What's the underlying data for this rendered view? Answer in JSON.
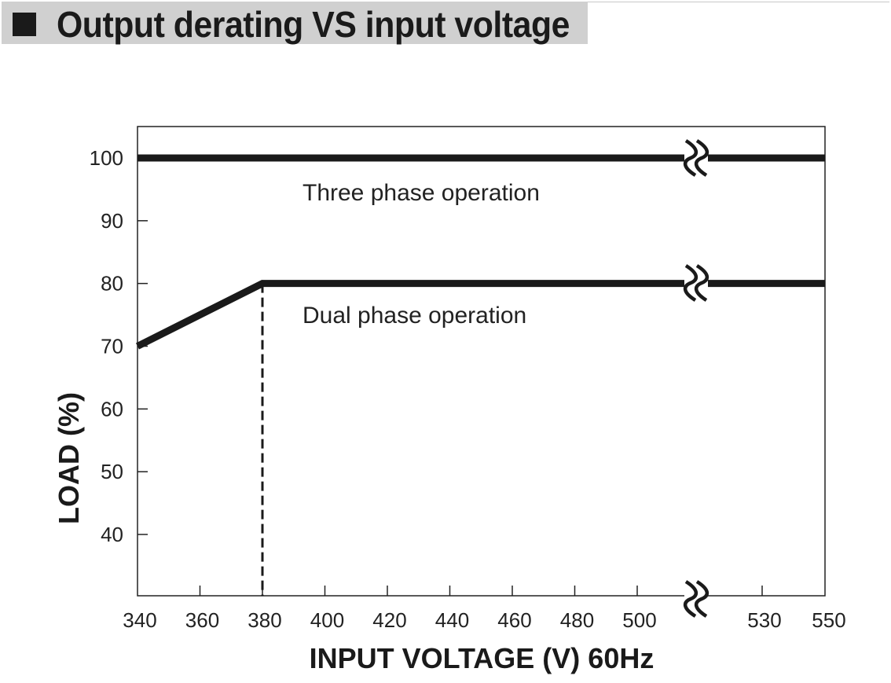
{
  "header": {
    "title": "Output derating VS input voltage"
  },
  "chart_data": {
    "type": "line",
    "title": "Output derating VS input voltage",
    "xlabel": "INPUT VOLTAGE (V) 60Hz",
    "ylabel": "LOAD (%)",
    "x_ticks": [
      "340",
      "360",
      "380",
      "400",
      "420",
      "440",
      "460",
      "480",
      "500",
      "530",
      "550"
    ],
    "y_ticks": [
      "40",
      "50",
      "60",
      "70",
      "80",
      "90",
      "100"
    ],
    "xlim": [
      340,
      550
    ],
    "ylim": [
      30,
      105
    ],
    "axis_break": "between 500 and 530",
    "grid": false,
    "series": [
      {
        "name": "Three phase operation",
        "x": [
          340,
          550
        ],
        "y": [
          100,
          100
        ]
      },
      {
        "name": "Dual phase operation",
        "x": [
          340,
          380,
          550
        ],
        "y": [
          70,
          80,
          80
        ]
      }
    ],
    "reference_lines": [
      {
        "x": 380,
        "style": "dashed",
        "from_y": 30,
        "to_y": 80
      }
    ],
    "colors": {
      "line": "#1a1a1a",
      "frame": "#222222"
    }
  }
}
